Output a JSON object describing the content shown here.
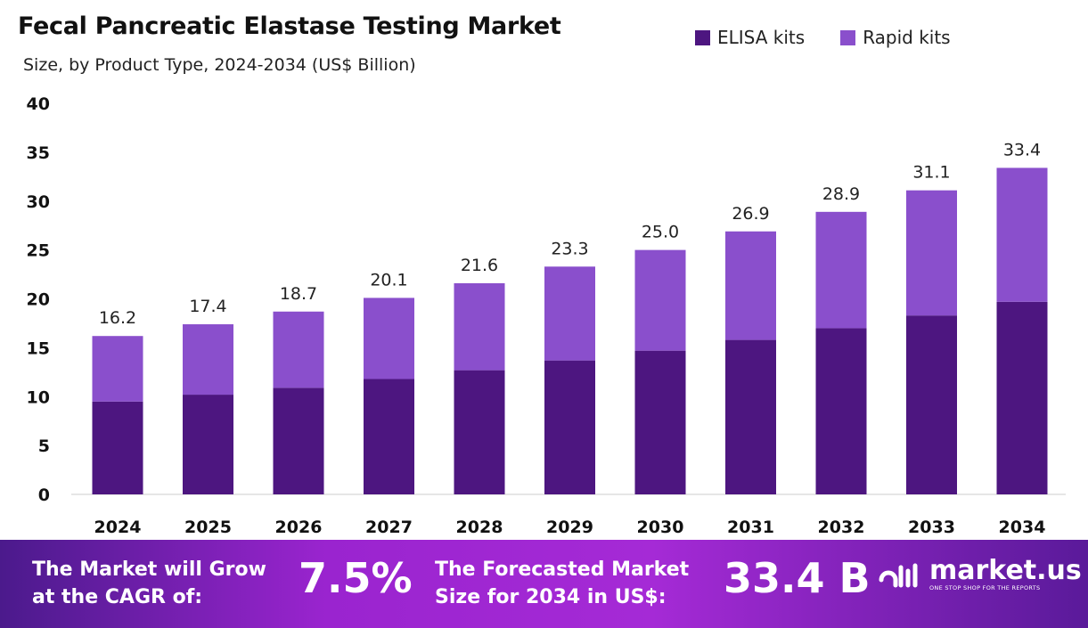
{
  "chart_data": {
    "type": "bar",
    "stacked": true,
    "title": "Fecal Pancreatic Elastase Testing Market",
    "subtitle": "Size, by Product Type, 2024-2034 (US$ Billion)",
    "categories": [
      "2024",
      "2025",
      "2026",
      "2027",
      "2028",
      "2029",
      "2030",
      "2031",
      "2032",
      "2033",
      "2034"
    ],
    "series": [
      {
        "name": "ELISA kits",
        "color": "#4d1680",
        "values": [
          9.5,
          10.2,
          10.9,
          11.8,
          12.7,
          13.7,
          14.7,
          15.8,
          17.0,
          18.3,
          19.7
        ]
      },
      {
        "name": "Rapid kits",
        "color": "#8a4fcc",
        "values": [
          6.7,
          7.2,
          7.8,
          8.3,
          8.9,
          9.6,
          10.3,
          11.1,
          11.9,
          12.8,
          13.7
        ]
      }
    ],
    "totals": [
      "16.2",
      "17.4",
      "18.7",
      "20.1",
      "21.6",
      "23.3",
      "25.0",
      "26.9",
      "28.9",
      "31.1",
      "33.4"
    ],
    "yticks": [
      "0",
      "5",
      "10",
      "15",
      "20",
      "25",
      "30",
      "35",
      "40"
    ],
    "ylim": [
      0,
      40
    ],
    "legend_position": "top-right",
    "grid": false
  },
  "footer": {
    "cagr_label_1": "The Market will Grow",
    "cagr_label_2": "at the CAGR of:",
    "cagr_value": "7.5%",
    "forecast_label_1": "The Forecasted Market",
    "forecast_label_2": "Size for 2034 in US$:",
    "forecast_value": "33.4 B",
    "logo_name": "market.us",
    "logo_tagline": "ONE STOP SHOP FOR THE REPORTS"
  }
}
